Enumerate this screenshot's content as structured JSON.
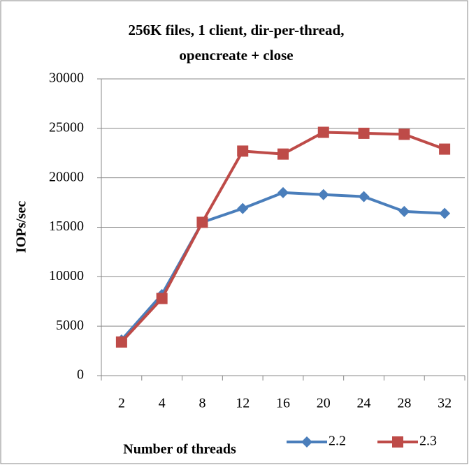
{
  "chart_data": {
    "type": "line",
    "title": [
      "256K files, 1 client, dir-per-thread,",
      "opencreate + close"
    ],
    "x_label": "Number of threads",
    "y_label": "IOPs/sec",
    "categories": [
      "2",
      "4",
      "8",
      "12",
      "16",
      "20",
      "24",
      "28",
      "32"
    ],
    "series": [
      {
        "name": "2.2",
        "color": "#4a7ebb",
        "marker": "diamond",
        "values": [
          3600,
          8200,
          15500,
          16900,
          18500,
          18300,
          18100,
          16600,
          16400
        ]
      },
      {
        "name": "2.3",
        "color": "#be4b48",
        "marker": "square",
        "values": [
          3400,
          7800,
          15500,
          22700,
          22400,
          24600,
          24500,
          24400,
          22900
        ]
      }
    ],
    "ylim": [
      0,
      30000
    ],
    "yticks": [
      0,
      5000,
      10000,
      15000,
      20000,
      25000,
      30000
    ],
    "grid": true,
    "legend": "bottom"
  }
}
